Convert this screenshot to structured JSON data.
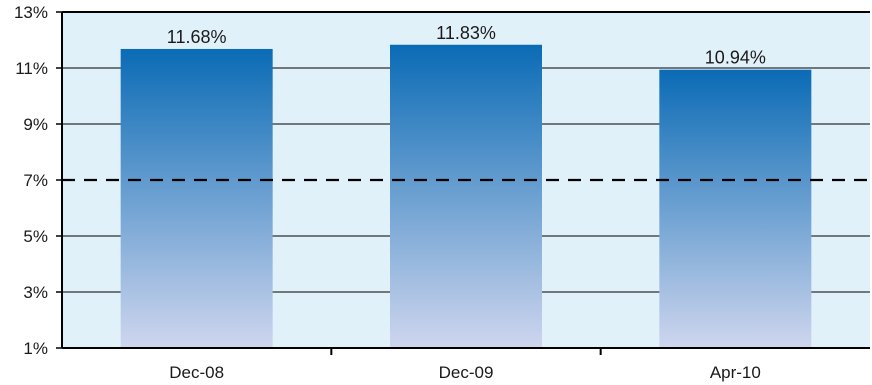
{
  "chart_data": {
    "type": "bar",
    "categories": [
      "Dec-08",
      "Dec-09",
      "Apr-10"
    ],
    "values": [
      11.68,
      11.83,
      10.94
    ],
    "data_labels": [
      "11.68%",
      "11.83%",
      "10.94%"
    ],
    "title": "",
    "xlabel": "",
    "ylabel": "",
    "ylim": [
      1,
      13
    ],
    "yticks": [
      1,
      3,
      5,
      7,
      9,
      11,
      13
    ],
    "ytick_labels": [
      "1%",
      "3%",
      "5%",
      "7%",
      "9%",
      "11%",
      "13%"
    ],
    "reference_line": {
      "value": 7,
      "style": "dashed"
    },
    "grid": true,
    "legend": "none",
    "colors": {
      "plot_background": "#e1f1fa",
      "bar_top": "#0a6bb5",
      "bar_bottom": "#cfd6ee",
      "gridline": "#000000",
      "reference_line": "#000000"
    }
  }
}
